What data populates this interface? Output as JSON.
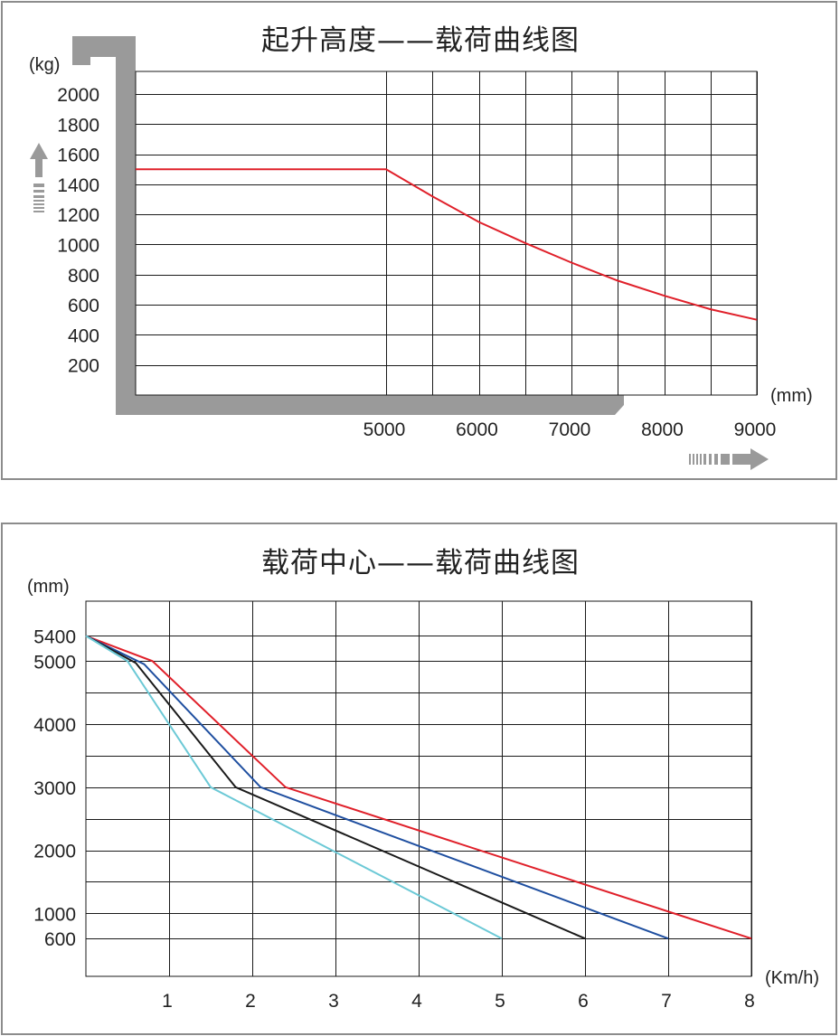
{
  "chart_data": [
    {
      "type": "line",
      "title": "起升高度——载荷曲线图",
      "ylabel": "(kg)",
      "xlabel": "(mm)",
      "x_ticks": [
        "5000",
        "6000",
        "7000",
        "8000",
        "9000"
      ],
      "y_ticks": [
        "200",
        "400",
        "600",
        "800",
        "1000",
        "1200",
        "1400",
        "1600",
        "1800",
        "2000"
      ],
      "xlim": [
        0,
        9000
      ],
      "ylim": [
        0,
        2150
      ],
      "grid": true,
      "colors": {
        "line": "#e0202a",
        "frame": "#9a9a9a",
        "arrow": "#9a9a9a"
      },
      "series": [
        {
          "color": "#e0202a",
          "x": [
            0,
            5000,
            5500,
            6000,
            6500,
            7000,
            7500,
            8000,
            8500,
            9000
          ],
          "y": [
            1500,
            1500,
            1320,
            1150,
            1010,
            880,
            760,
            660,
            570,
            500
          ]
        }
      ]
    },
    {
      "type": "line",
      "title": "载荷中心——载荷曲线图",
      "ylabel": "(mm)",
      "xlabel": "(Km/h)",
      "x_ticks": [
        "1",
        "2",
        "3",
        "4",
        "5",
        "6",
        "7",
        "8"
      ],
      "y_ticks": [
        "600",
        "1000",
        "2000",
        "3000",
        "4000",
        "5000",
        "5400"
      ],
      "xlim": [
        0,
        8
      ],
      "ylim": [
        0,
        5950
      ],
      "grid": true,
      "series": [
        {
          "color": "#e0202a",
          "x": [
            0,
            0.8,
            2.4,
            8
          ],
          "y": [
            5400,
            5000,
            3000,
            600
          ]
        },
        {
          "color": "#1f4fa0",
          "x": [
            0,
            0.7,
            2.1,
            7
          ],
          "y": [
            5400,
            4950,
            3000,
            600
          ]
        },
        {
          "color": "#1a1a1a",
          "x": [
            0,
            0.6,
            1.8,
            6
          ],
          "y": [
            5400,
            4970,
            3000,
            600
          ]
        },
        {
          "color": "#6cc9d6",
          "x": [
            0,
            0.5,
            1.5,
            5
          ],
          "y": [
            5400,
            5000,
            3000,
            600
          ]
        }
      ]
    }
  ]
}
